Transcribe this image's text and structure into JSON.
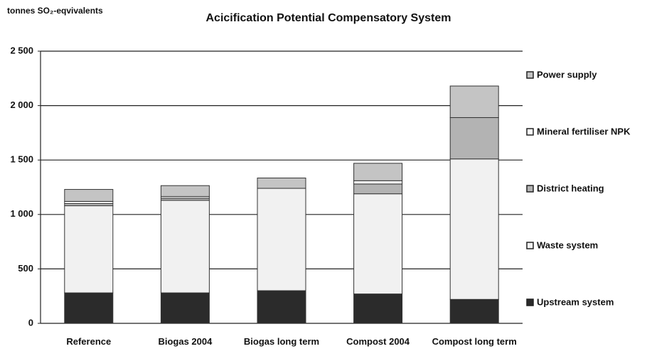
{
  "chart_data": {
    "type": "stacked_bar",
    "title": "Acicification Potential Compensatory System",
    "y_label": "tonnes SO₂-eqvivalents",
    "categories": [
      "Reference",
      "Biogas 2004",
      "Biogas long term",
      "Compost 2004",
      "Compost long term"
    ],
    "series": [
      {
        "name": "Upstream system",
        "color": "#2b2b2b",
        "values": [
          280,
          280,
          300,
          270,
          220
        ]
      },
      {
        "name": "Waste system",
        "color": "#f1f1f1",
        "values": [
          800,
          850,
          940,
          920,
          1290
        ]
      },
      {
        "name": "District heating",
        "color": "#b3b3b3",
        "values": [
          20,
          20,
          0,
          90,
          380
        ]
      },
      {
        "name": "Mineral fertiliser NPK",
        "color": "#fbfbfb",
        "values": [
          20,
          15,
          0,
          30,
          0
        ]
      },
      {
        "name": "Power supply",
        "color": "#c4c4c4",
        "values": [
          110,
          100,
          95,
          160,
          290
        ]
      }
    ],
    "ylim": [
      0,
      2500
    ],
    "yticks": [
      0,
      500,
      {
        "value": 1000,
        "label": "1 000"
      },
      {
        "value": 1500,
        "label": "1 500"
      },
      {
        "value": 2000,
        "label": "2 000"
      },
      {
        "value": 2500,
        "label": "2 500"
      }
    ],
    "grid": true
  }
}
